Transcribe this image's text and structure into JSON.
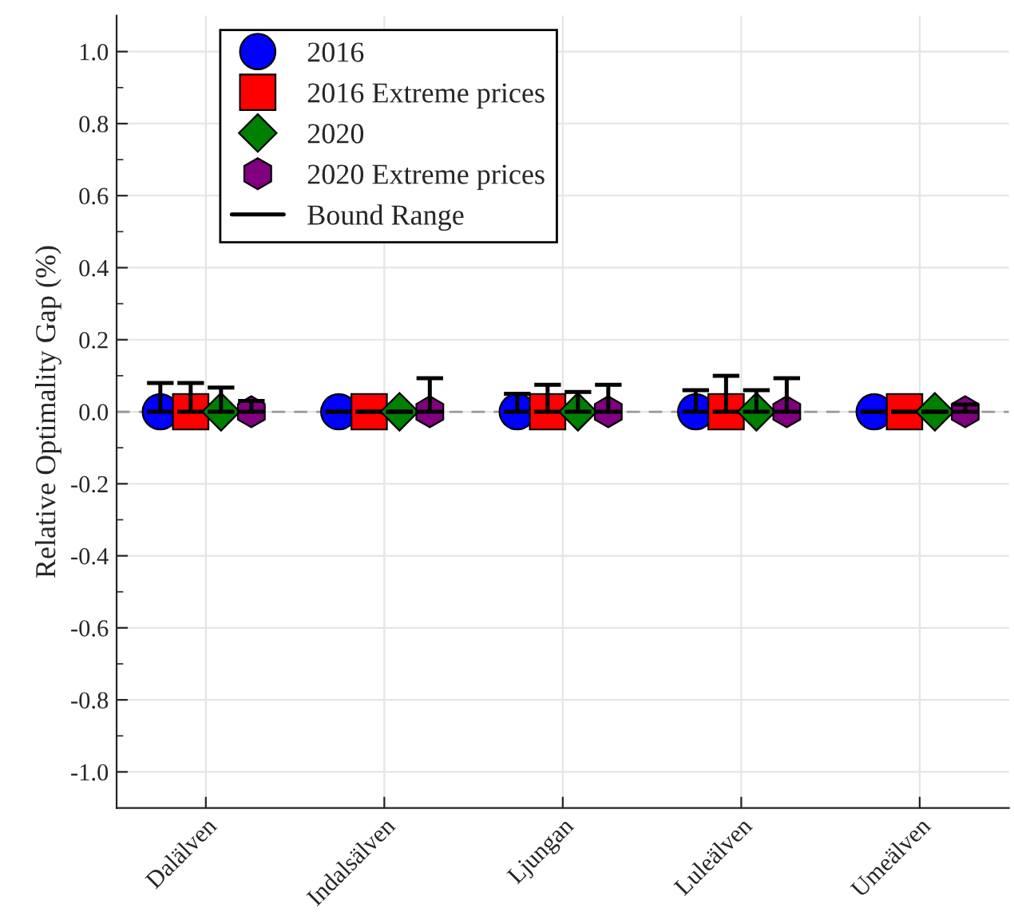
{
  "chart_data": {
    "type": "scatter",
    "ylabel": "Relative Optimality Gap (%)",
    "categories": [
      "Dalälven",
      "Indalsälven",
      "Ljungan",
      "Luleälven",
      "Umeälven"
    ],
    "series": [
      {
        "name": "2016",
        "color": "#0000ff",
        "marker": "circle",
        "values": [
          0,
          0,
          0,
          0,
          0
        ],
        "errors": [
          [
            0,
            0.08
          ],
          [
            0,
            0
          ],
          [
            0,
            0.05
          ],
          [
            0,
            0.06
          ],
          [
            0,
            0
          ]
        ]
      },
      {
        "name": "2016 Extreme prices",
        "color": "#ff0000",
        "marker": "square",
        "values": [
          0,
          0,
          0,
          0,
          0
        ],
        "errors": [
          [
            0,
            0.08
          ],
          [
            0,
            0
          ],
          [
            0,
            0.075
          ],
          [
            0,
            0.1
          ],
          [
            0,
            0
          ]
        ]
      },
      {
        "name": "2020",
        "color": "#008000",
        "marker": "diamond",
        "values": [
          0,
          0,
          0,
          0,
          0
        ],
        "errors": [
          [
            0,
            0.067
          ],
          [
            0,
            0
          ],
          [
            0,
            0.055
          ],
          [
            0,
            0.06
          ],
          [
            0,
            0
          ]
        ]
      },
      {
        "name": "2020 Extreme prices",
        "color": "#800080",
        "values": [
          0,
          0,
          0,
          0,
          0
        ],
        "errors": [
          [
            0,
            0.03
          ],
          [
            0,
            0.093
          ],
          [
            0,
            0.075
          ],
          [
            0,
            0.093
          ],
          [
            0,
            0.02
          ]
        ]
      },
      {
        "name": "Bound Range",
        "type": "line",
        "color": "#000000",
        "values": [
          null,
          null,
          null,
          null,
          null
        ]
      }
    ],
    "ref_lines": [
      {
        "axis": "y",
        "value": 0,
        "color": "#999999",
        "line_style": "dashed"
      }
    ],
    "ylim": [
      -1.1,
      1.1
    ],
    "yticks": [
      {
        "value": -1.0,
        "label": "-1.0"
      },
      {
        "value": -0.8,
        "label": "-0.8"
      },
      {
        "value": -0.6,
        "label": "-0.6"
      },
      {
        "value": -0.4,
        "label": "-0.4"
      },
      {
        "value": -0.2,
        "label": "-0.2"
      },
      {
        "value": 0.0,
        "label": "0.0"
      },
      {
        "value": 0.2,
        "label": "0.2"
      },
      {
        "value": 0.4,
        "label": "0.4"
      },
      {
        "value": 0.6,
        "label": "0.6"
      },
      {
        "value": 0.8,
        "label": "0.8"
      },
      {
        "value": 1.0,
        "label": "1.0"
      }
    ],
    "grid": true,
    "legend": "top left"
  }
}
